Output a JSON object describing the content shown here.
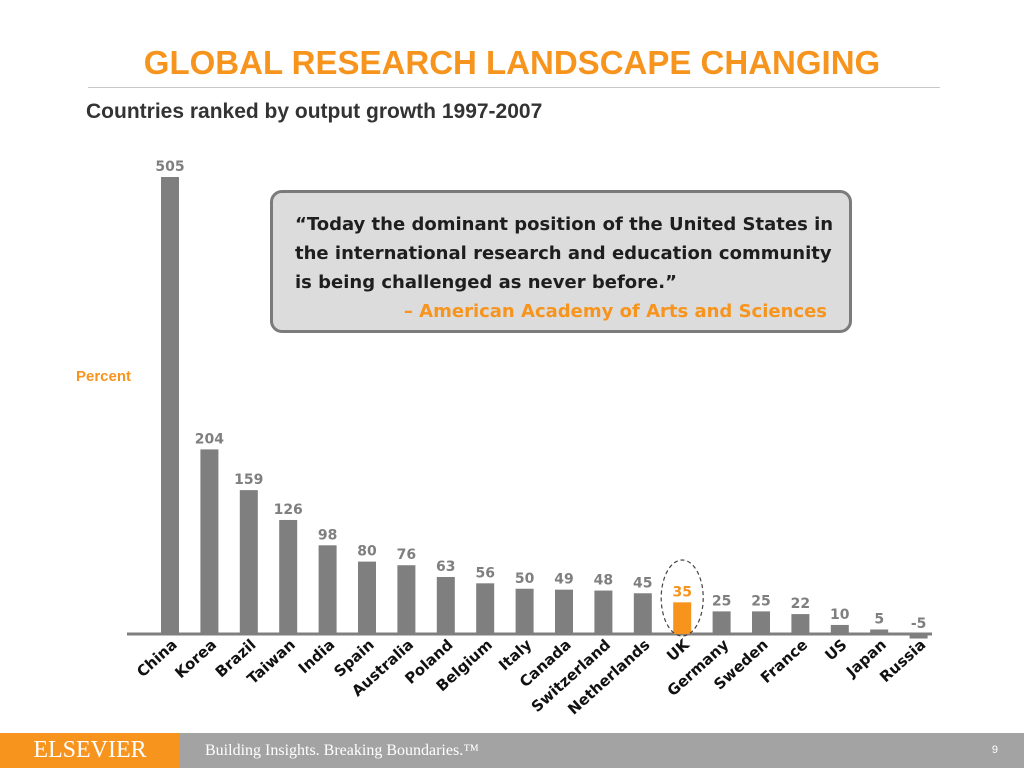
{
  "header": {
    "title": "GLOBAL RESEARCH LANDSCAPE CHANGING",
    "subtitle": "Countries ranked by output growth 1997-2007"
  },
  "colors": {
    "accent": "#f7941d",
    "bar": "#7f7f80",
    "highlight": "#f7941d",
    "axis": "#7f7f80"
  },
  "chart_data": {
    "type": "bar",
    "ylabel": "Percent",
    "xlabel": "",
    "categories": [
      "China",
      "Korea",
      "Brazil",
      "Taiwan",
      "India",
      "Spain",
      "Australia",
      "Poland",
      "Belgium",
      "Italy",
      "Canada",
      "Switzerland",
      "Netherlands",
      "UK",
      "Germany",
      "Sweden",
      "France",
      "US",
      "Japan",
      "Russia"
    ],
    "values": [
      505,
      204,
      159,
      126,
      98,
      80,
      76,
      63,
      56,
      50,
      49,
      48,
      45,
      35,
      25,
      25,
      22,
      10,
      5,
      -5
    ],
    "highlight_category": "UK",
    "highlight_marker": "dashed-ellipse",
    "ylim": [
      -5,
      505
    ],
    "grid": false,
    "legend": "none"
  },
  "quote": {
    "lines": [
      "“Today the dominant position of the United States in",
      "the international research and education community",
      "is being challenged as never before.”"
    ],
    "source": "– American Academy of Arts and Sciences"
  },
  "footer": {
    "logo": "ELSEVIER",
    "tagline": "Building Insights. Breaking Boundaries.™",
    "page_number": "9"
  }
}
